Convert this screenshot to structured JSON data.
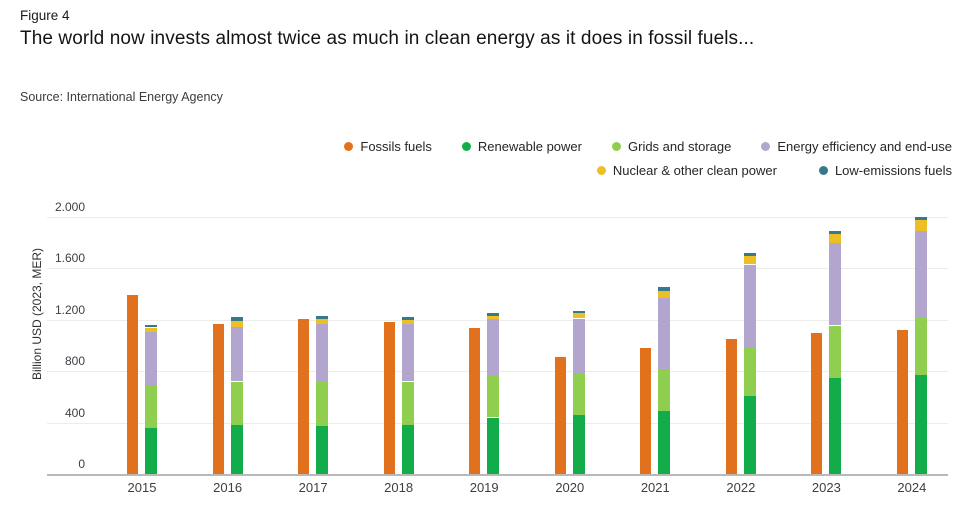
{
  "header": {
    "figure_label": "Figure 4",
    "title": "The world now invests almost twice as much in clean energy as it does in fossil fuels...",
    "source": "Source: International Energy Agency"
  },
  "chart_data": {
    "type": "bar",
    "subtype": "grouped-with-stack",
    "title": "",
    "xlabel": "",
    "ylabel": "Billion USD (2023, MER)",
    "ylim": [
      0,
      2000
    ],
    "grid": "horizontal",
    "legend_position": "top-right",
    "categories": [
      "2015",
      "2016",
      "2017",
      "2018",
      "2019",
      "2020",
      "2021",
      "2022",
      "2023",
      "2024"
    ],
    "yticks": [
      {
        "value": 0,
        "label": "0"
      },
      {
        "value": 400,
        "label": "400"
      },
      {
        "value": 800,
        "label": "800"
      },
      {
        "value": 1200,
        "label": "1.200"
      },
      {
        "value": 1600,
        "label": "1.600"
      },
      {
        "value": 2000,
        "label": "2.000"
      }
    ],
    "series": [
      {
        "name": "Fossils fuels",
        "color": "#E2711D",
        "stack": "fossil",
        "values": [
          1390,
          1165,
          1205,
          1180,
          1140,
          910,
          980,
          1050,
          1100,
          1120
        ]
      },
      {
        "name": "Renewable power",
        "color": "#12AC4B",
        "stack": "clean",
        "values": [
          360,
          385,
          375,
          385,
          440,
          460,
          490,
          610,
          745,
          770
        ]
      },
      {
        "name": "Grids and storage",
        "color": "#8FCE4F",
        "stack": "clean",
        "values": [
          335,
          335,
          340,
          335,
          330,
          315,
          330,
          375,
          410,
          450
        ]
      },
      {
        "name": "Energy efficiency and end-use",
        "color": "#B3A6CE",
        "stack": "clean",
        "values": [
          410,
          425,
          455,
          445,
          435,
          435,
          550,
          645,
          640,
          670
        ]
      },
      {
        "name": "Nuclear & other clean power",
        "color": "#ECC025",
        "stack": "clean",
        "values": [
          35,
          45,
          40,
          38,
          28,
          40,
          57,
          67,
          70,
          85
        ]
      },
      {
        "name": "Low-emissions fuels",
        "color": "#35798B",
        "stack": "clean",
        "values": [
          18,
          30,
          23,
          23,
          23,
          21,
          26,
          23,
          26,
          26
        ]
      }
    ],
    "legend_rows": [
      [
        "Fossils fuels",
        "Renewable power",
        "Grids and storage",
        "Energy efficiency and end-use"
      ],
      [
        "Nuclear & other clean power",
        "Low-emissions fuels"
      ]
    ]
  }
}
